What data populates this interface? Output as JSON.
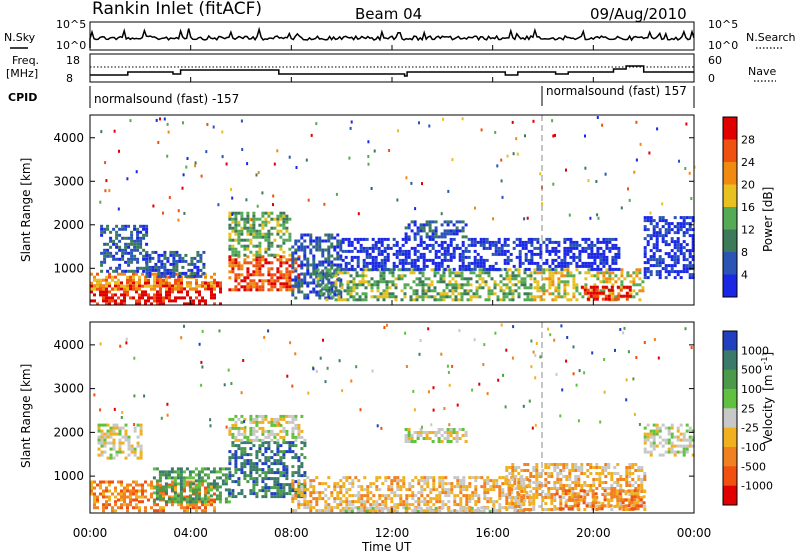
{
  "header": {
    "title": "Rankin Inlet (fitACF)",
    "beam": "Beam 04",
    "date": "09/Aug/2010"
  },
  "top_panels": {
    "nsky_label": "N.Sky",
    "nsky_ticks": [
      "10^5",
      "10^0"
    ],
    "nsearch_label": "N.Search",
    "nsearch_ticks": [
      "10^5",
      "10^0"
    ],
    "freq_label": "Freq.",
    "freq_unit": "[MHz]",
    "freq_ticks": [
      "18",
      "8"
    ],
    "nave_label": "Nave",
    "nave_ticks": [
      "60",
      "0"
    ],
    "cpid_label": "CPID",
    "cpid_segments": [
      {
        "label": "normalsound (fast) -157",
        "start_hour": 0
      },
      {
        "label": "normalsound (fast) 157",
        "start_hour": 18
      }
    ]
  },
  "axes": {
    "xlabel": "Time UT",
    "xticks": [
      "00:00",
      "04:00",
      "08:00",
      "12:00",
      "16:00",
      "20:00",
      "00:00"
    ],
    "ylabel": "Slant Range [km]",
    "yticks": [
      "1000",
      "2000",
      "3000",
      "4000"
    ]
  },
  "colorbars": {
    "power": {
      "label": "Power [dB]",
      "ticks": [
        "4",
        "8",
        "12",
        "16",
        "20",
        "24",
        "28"
      ],
      "colors": [
        "#1a28e6",
        "#2a55b5",
        "#3d7a5a",
        "#55aa55",
        "#e8c020",
        "#f08a10",
        "#f05010",
        "#e00000"
      ]
    },
    "velocity": {
      "label_main": "Velocity",
      "label_units": "[m s",
      "label_exp": "-1",
      "label_close": "]",
      "ticks": [
        "1000",
        "500",
        "100",
        "25",
        "-25",
        "-100",
        "-500",
        "-1000"
      ],
      "colors": [
        "#2040c0",
        "#3a7a6a",
        "#4a9a4a",
        "#60c040",
        "#c8c8c8",
        "#f0b020",
        "#f08020",
        "#f05010",
        "#e00000"
      ]
    }
  },
  "chart_data": [
    {
      "type": "heatmap",
      "name": "power",
      "x_range_hours": [
        0,
        24
      ],
      "y_range_km": [
        180,
        4500
      ],
      "bands": [
        {
          "t0": 0.0,
          "t1": 5.2,
          "r0": 180,
          "r1": 700,
          "level": 7
        },
        {
          "t0": 0.0,
          "t1": 5.0,
          "r0": 550,
          "r1": 900,
          "level": 5
        },
        {
          "t0": 0.4,
          "t1": 2.2,
          "r0": 900,
          "r1": 2000,
          "level": 1
        },
        {
          "t0": 2.2,
          "t1": 4.5,
          "r0": 800,
          "r1": 1400,
          "level": 1
        },
        {
          "t0": 5.5,
          "t1": 8.3,
          "r0": 500,
          "r1": 1300,
          "level": 6
        },
        {
          "t0": 5.5,
          "t1": 8.0,
          "r0": 1300,
          "r1": 2300,
          "level": 3
        },
        {
          "t0": 8.0,
          "t1": 10.0,
          "r0": 300,
          "r1": 1800,
          "level": 1
        },
        {
          "t0": 9.0,
          "t1": 17.5,
          "r0": 250,
          "r1": 1000,
          "level": 3
        },
        {
          "t0": 10.0,
          "t1": 17.5,
          "r0": 1000,
          "r1": 1700,
          "level": 0
        },
        {
          "t0": 12.5,
          "t1": 15.0,
          "r0": 1700,
          "r1": 2100,
          "level": 1
        },
        {
          "t0": 17.5,
          "t1": 22.0,
          "r0": 250,
          "r1": 1000,
          "level": 4
        },
        {
          "t0": 19.5,
          "t1": 21.5,
          "r0": 300,
          "r1": 600,
          "level": 7
        },
        {
          "t0": 17.5,
          "t1": 21.0,
          "r0": 1000,
          "r1": 1700,
          "level": 0
        },
        {
          "t0": 22.0,
          "t1": 24.0,
          "r0": 800,
          "r1": 2200,
          "level": 0
        }
      ]
    },
    {
      "type": "heatmap",
      "name": "velocity",
      "x_range_hours": [
        0,
        24
      ],
      "y_range_km": [
        180,
        4500
      ],
      "bands": [
        {
          "t0": 0.0,
          "t1": 5.0,
          "r0": 180,
          "r1": 450,
          "level": 6
        },
        {
          "t0": 0.0,
          "t1": 5.0,
          "r0": 450,
          "r1": 900,
          "level": 6
        },
        {
          "t0": 0.3,
          "t1": 2.0,
          "r0": 1400,
          "r1": 2200,
          "level": 4
        },
        {
          "t0": 2.5,
          "t1": 5.5,
          "r0": 400,
          "r1": 1200,
          "level": 2
        },
        {
          "t0": 5.5,
          "t1": 8.5,
          "r0": 500,
          "r1": 1800,
          "level": 1
        },
        {
          "t0": 5.5,
          "t1": 8.5,
          "r0": 1800,
          "r1": 2400,
          "level": 4
        },
        {
          "t0": 8.0,
          "t1": 17.5,
          "r0": 200,
          "r1": 1000,
          "level": 5
        },
        {
          "t0": 10.0,
          "t1": 16.0,
          "r0": 180,
          "r1": 300,
          "level": 4
        },
        {
          "t0": 12.5,
          "t1": 15.0,
          "r0": 1800,
          "r1": 2100,
          "level": 4
        },
        {
          "t0": 16.5,
          "t1": 22.0,
          "r0": 250,
          "r1": 1300,
          "level": 5
        },
        {
          "t0": 18.5,
          "t1": 22.0,
          "r0": 250,
          "r1": 700,
          "level": 6
        },
        {
          "t0": 22.0,
          "t1": 24.0,
          "r0": 1500,
          "r1": 2200,
          "level": 4
        }
      ]
    }
  ]
}
